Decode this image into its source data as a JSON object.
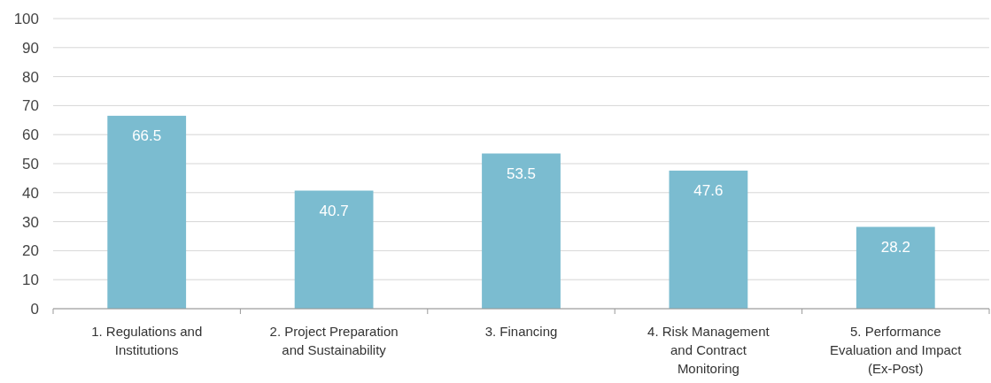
{
  "chart_data": {
    "type": "bar",
    "categories": [
      "1. Regulations and Institutions",
      "2. Project Preparation and Sustainability",
      "3. Financing",
      "4. Risk Management and Contract Monitoring",
      "5. Performance Evaluation and Impact (Ex-Post)"
    ],
    "values": [
      66.5,
      40.7,
      53.5,
      47.6,
      28.2
    ],
    "color": "#7bbcd0",
    "ylim": [
      0,
      100
    ],
    "yticks": [
      0,
      10,
      20,
      30,
      40,
      50,
      60,
      70,
      80,
      90,
      100
    ],
    "grid": "y",
    "data_labels": true
  }
}
